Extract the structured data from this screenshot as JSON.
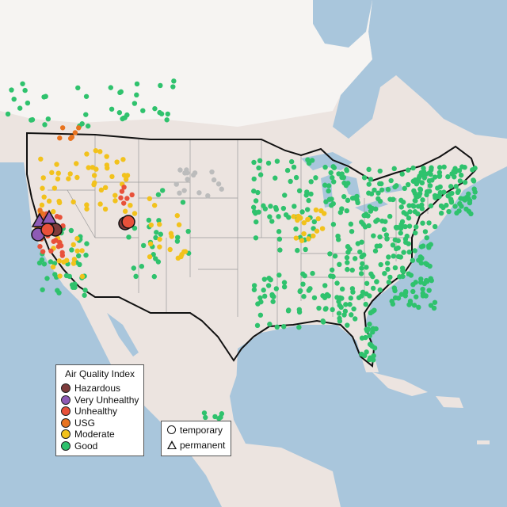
{
  "legend": {
    "title": "Air Quality Index",
    "categories": [
      {
        "label": "Hazardous",
        "color": "#7e3b3b"
      },
      {
        "label": "Very Unhealthy",
        "color": "#8e5bb5"
      },
      {
        "label": "Unhealthy",
        "color": "#e8513a"
      },
      {
        "label": "USG",
        "color": "#e8731f"
      },
      {
        "label": "Moderate",
        "color": "#f2c21c"
      },
      {
        "label": "Good",
        "color": "#2fc26d"
      }
    ],
    "types": [
      {
        "label": "temporary",
        "symbol": "circle"
      },
      {
        "label": "permanent",
        "symbol": "triangle"
      }
    ]
  },
  "colors": {
    "water": "#a9c6dc",
    "land": "#ece4e0",
    "snow": "#f6f4f2",
    "border": "#111111",
    "state_lines": "#9a9a9a",
    "no_data": "#bcbcbc"
  }
}
